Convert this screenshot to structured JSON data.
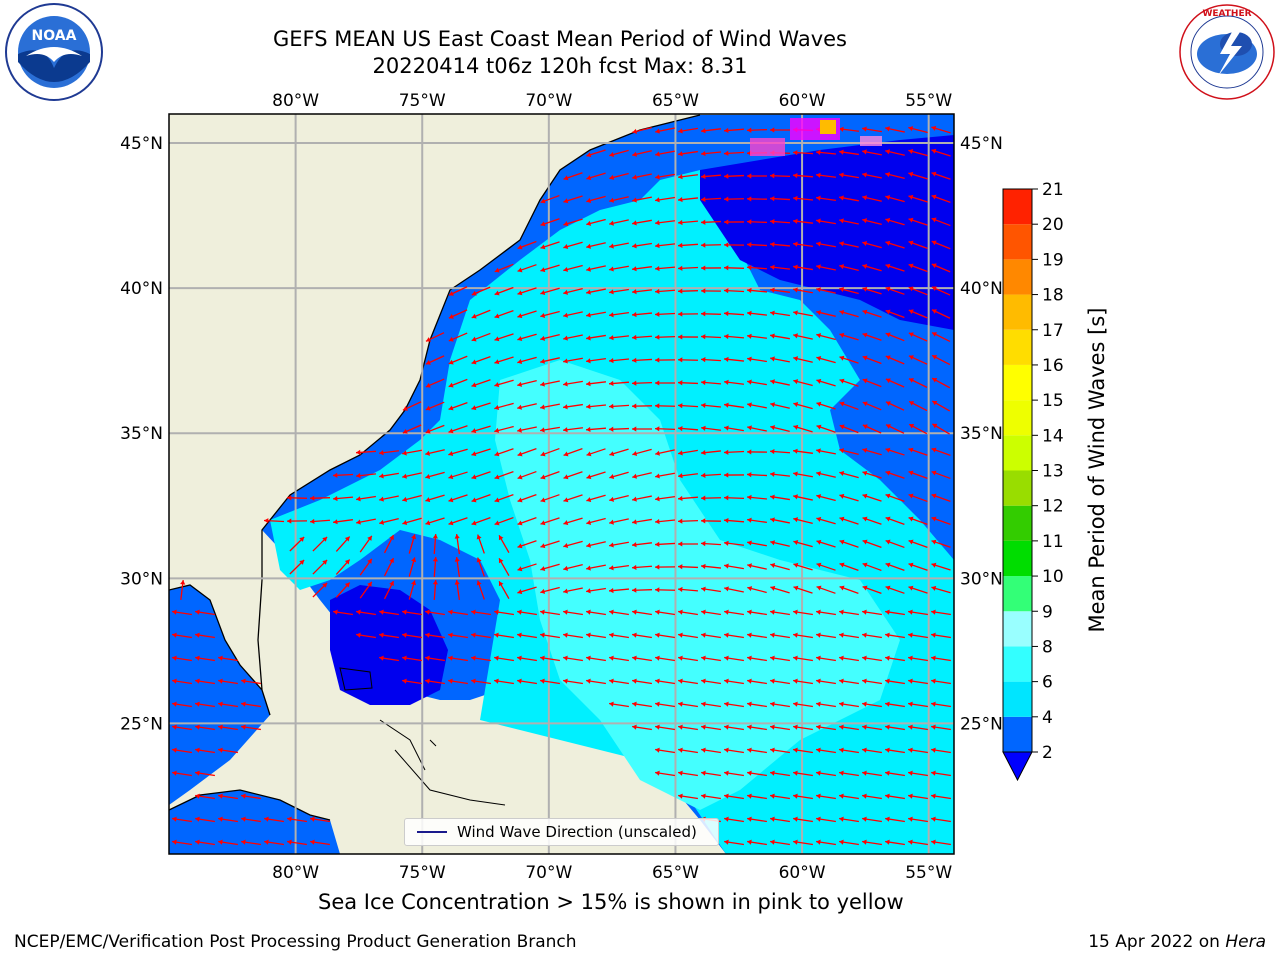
{
  "title": {
    "line1": "GEFS MEAN US East Coast Mean Period of Wind Waves",
    "line2": "20220414 t06z 120h fcst   Max: 8.31"
  },
  "logos": {
    "left": "NOAA",
    "left_ring": "NATIONAL OCEANIC AND ATMOSPHERIC ADMINISTRATION · U.S. DEPARTMENT OF COMMERCE",
    "right_ring": "NATIONAL WEATHER SERVICE"
  },
  "chart_data": {
    "type": "map",
    "projection": "plate-carree",
    "lon_range": [
      -85,
      -54
    ],
    "lat_range": [
      20.5,
      46
    ],
    "grid": true,
    "lon_ticks": [
      {
        "value": -80,
        "label": "80°W"
      },
      {
        "value": -75,
        "label": "75°W"
      },
      {
        "value": -70,
        "label": "70°W"
      },
      {
        "value": -65,
        "label": "65°W"
      },
      {
        "value": -60,
        "label": "60°W"
      },
      {
        "value": -55,
        "label": "55°W"
      }
    ],
    "lat_ticks": [
      {
        "value": 25,
        "label": "25°N"
      },
      {
        "value": 30,
        "label": "30°N"
      },
      {
        "value": 35,
        "label": "35°N"
      },
      {
        "value": 40,
        "label": "40°N"
      },
      {
        "value": 45,
        "label": "45°N"
      }
    ],
    "colorbar": {
      "label": "Mean Period of Wind Waves [s]",
      "ticks": [
        "2",
        "4",
        "6",
        "8",
        "9",
        "10",
        "11",
        "12",
        "13",
        "14",
        "15",
        "16",
        "17",
        "18",
        "19",
        "20",
        "21"
      ],
      "colors": [
        "#0066ff",
        "#00e5ff",
        "#33ffff",
        "#99ffff",
        "#33ff77",
        "#00dd00",
        "#33cc00",
        "#99dd00",
        "#ccff00",
        "#eeff00",
        "#ffff00",
        "#ffdd00",
        "#ffbb00",
        "#ff8800",
        "#ff5500",
        "#ff2200",
        "#ff0000"
      ],
      "under_color": "#0000ff",
      "extend": "min"
    },
    "legend": {
      "text": "Wind Wave Direction (unscaled)",
      "placement": "bottom-center"
    },
    "max_value": 8.31
  },
  "caption": "Sea Ice Concentration > 15% is shown in pink to yellow",
  "footer": {
    "left": "NCEP/EMC/Verification Post Processing Product Generation Branch",
    "right_prefix": "15 Apr 2022 on ",
    "right_italic": "Hera"
  },
  "colors": {
    "land": "#efefdc",
    "deep_blue": "#0000ee",
    "mid_blue": "#0066ff",
    "cyan": "#00f0ff",
    "light_cyan": "#44ffff",
    "arrow": "#ff0000",
    "grid": "#b0b0b0"
  }
}
